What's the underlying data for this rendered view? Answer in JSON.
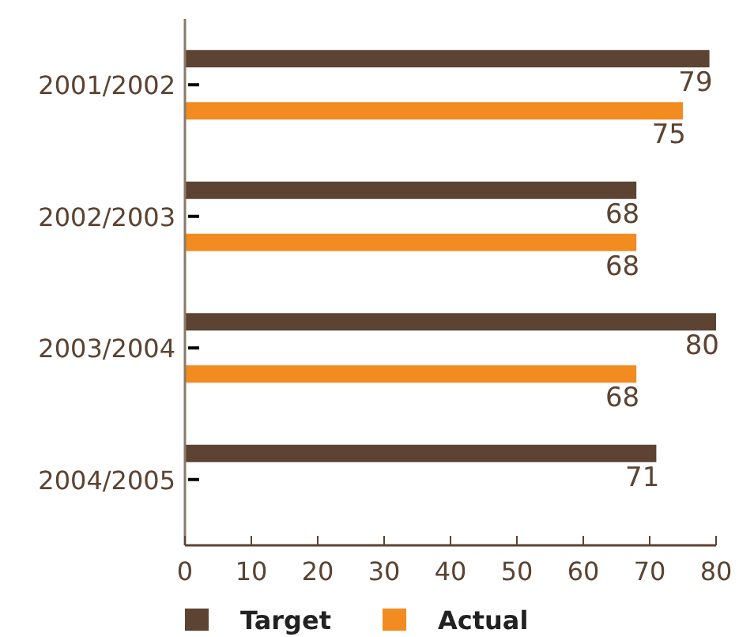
{
  "chart_data": {
    "type": "bar",
    "orientation": "horizontal",
    "categories": [
      "2001/2002",
      "2002/2003",
      "2003/2004",
      "2004/2005"
    ],
    "series": [
      {
        "name": "Target",
        "color": "#5c4332",
        "values": [
          79,
          68,
          80,
          71
        ]
      },
      {
        "name": "Actual",
        "color": "#f28c20",
        "values": [
          75,
          68,
          68,
          null
        ]
      }
    ],
    "xlim": [
      0,
      80
    ],
    "xticks": [
      0,
      10,
      20,
      30,
      40,
      50,
      60,
      70,
      80
    ],
    "data_labels": true,
    "legend": "bottom",
    "grid": false
  }
}
